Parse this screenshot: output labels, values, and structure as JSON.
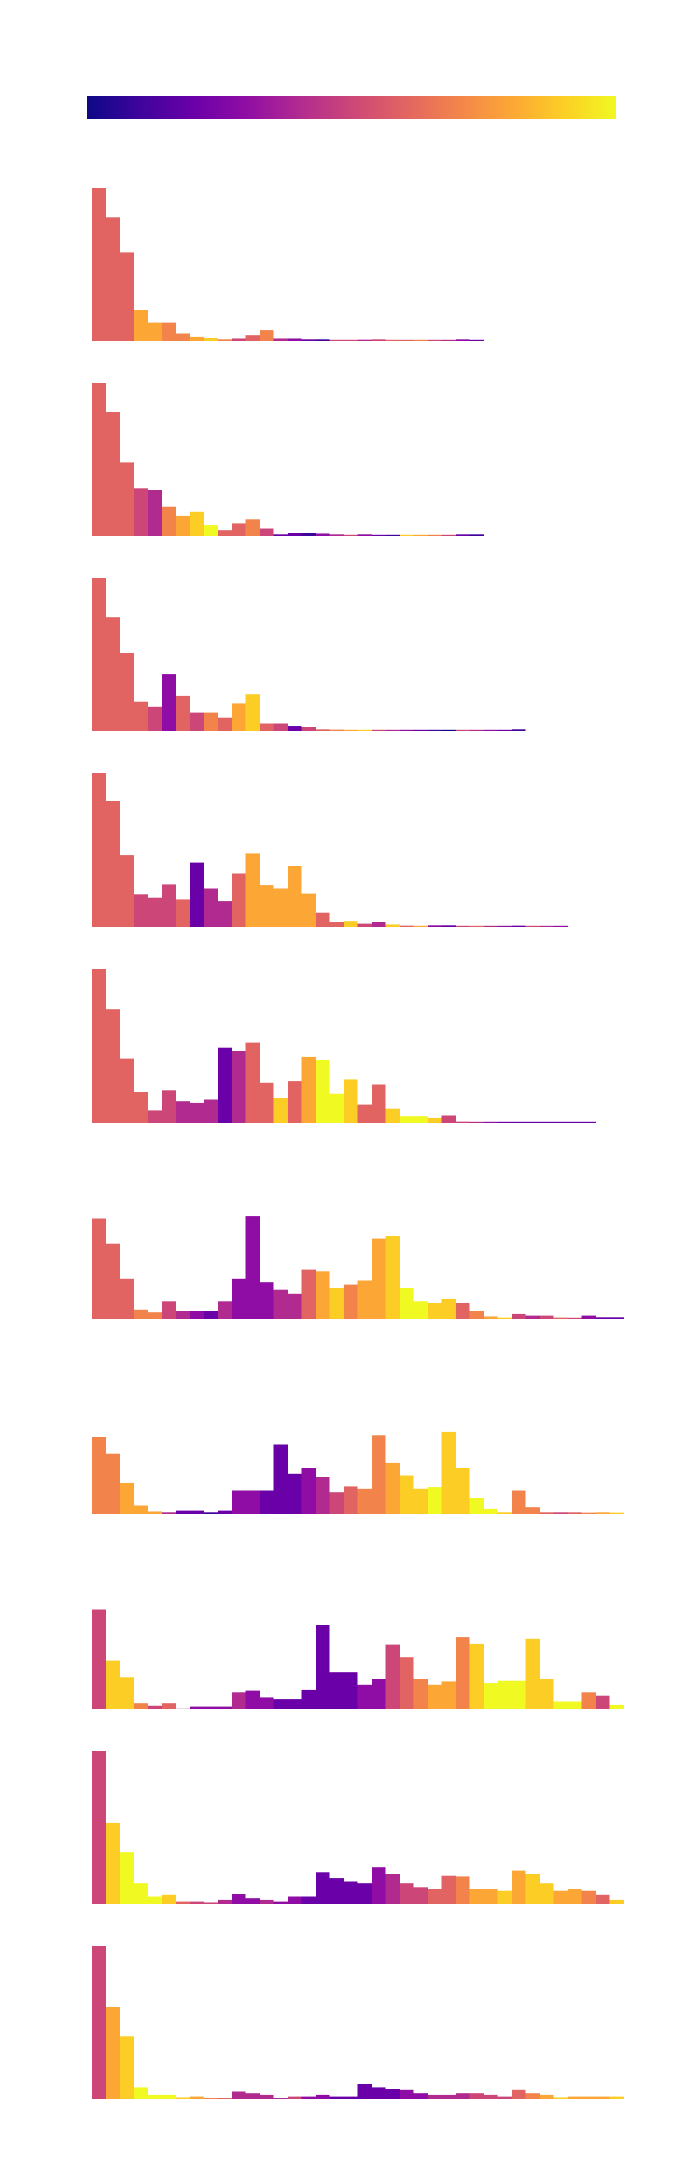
{
  "figure": {
    "colorbar": {
      "cmap": "plasma",
      "stops": [
        "#0d0887",
        "#3e049c",
        "#6a00a8",
        "#8f0da4",
        "#b12a90",
        "#cc4778",
        "#e16462",
        "#f2844b",
        "#fca636",
        "#fcce25",
        "#f0f921"
      ]
    }
  },
  "chart_data": [
    {
      "type": "bar",
      "title": "",
      "xlabel": "",
      "ylabel": "",
      "ylim": [
        0,
        1
      ],
      "grid": false,
      "legend": "none",
      "values": [
        1.0,
        0.81,
        0.58,
        0.2,
        0.12,
        0.12,
        0.05,
        0.03,
        0.02,
        0.01,
        0.015,
        0.04,
        0.07,
        0.015,
        0.015,
        0.01,
        0.01,
        0.004,
        0.003,
        0.008,
        0.01,
        0.007,
        0.005,
        0.003,
        0.003,
        0.004,
        0.01,
        0.007
      ],
      "colors": [
        "#e16462",
        "#e16462",
        "#e16462",
        "#fca636",
        "#fca636",
        "#f2844b",
        "#f2844b",
        "#fca636",
        "#fcce25",
        "#f2844b",
        "#cc4778",
        "#e16462",
        "#f2844b",
        "#b12a90",
        "#8f0da4",
        "#6a00a8",
        "#3e049c",
        "#cc4778",
        "#cc4778",
        "#b12a90",
        "#cc4778",
        "#e16462",
        "#e16462",
        "#f2844b",
        "#cc4778",
        "#b12a90",
        "#8f0da4",
        "#6a00a8"
      ]
    },
    {
      "type": "bar",
      "title": "",
      "xlabel": "",
      "ylabel": "",
      "ylim": [
        0,
        1
      ],
      "grid": false,
      "legend": "none",
      "values": [
        1.0,
        0.81,
        0.48,
        0.31,
        0.3,
        0.19,
        0.13,
        0.16,
        0.07,
        0.04,
        0.08,
        0.11,
        0.05,
        0.01,
        0.02,
        0.02,
        0.015,
        0.01,
        0.005,
        0.01,
        0.005,
        0.004,
        0.004,
        0.003,
        0.003,
        0.005,
        0.01,
        0.01
      ],
      "colors": [
        "#e16462",
        "#e16462",
        "#e16462",
        "#cc4778",
        "#b12a90",
        "#f2844b",
        "#fca636",
        "#fcce25",
        "#f0f921",
        "#e16462",
        "#e16462",
        "#f2844b",
        "#cc4778",
        "#6a00a8",
        "#6a00a8",
        "#3e049c",
        "#8f0da4",
        "#b12a90",
        "#cc4778",
        "#8f0da4",
        "#6a00a8",
        "#3e049c",
        "#fcce25",
        "#fca636",
        "#f2844b",
        "#cc4778",
        "#6a00a8",
        "#3e049c"
      ]
    },
    {
      "type": "bar",
      "title": "",
      "xlabel": "",
      "ylabel": "",
      "ylim": [
        0,
        1
      ],
      "grid": false,
      "legend": "none",
      "values": [
        1.0,
        0.74,
        0.51,
        0.19,
        0.16,
        0.37,
        0.23,
        0.12,
        0.12,
        0.09,
        0.18,
        0.24,
        0.05,
        0.05,
        0.035,
        0.025,
        0.01,
        0.008,
        0.005,
        0.005,
        0.005,
        0.003,
        0.003,
        0.003,
        0.003,
        0.003,
        0.003,
        0.003,
        0.003,
        0.003,
        0.01
      ],
      "colors": [
        "#e16462",
        "#e16462",
        "#e16462",
        "#e16462",
        "#cc4778",
        "#8f0da4",
        "#e16462",
        "#cc4778",
        "#f2844b",
        "#e16462",
        "#fca636",
        "#fcce25",
        "#e16462",
        "#cc4778",
        "#6a00a8",
        "#cc4778",
        "#e16462",
        "#f2844b",
        "#fca636",
        "#fcce25",
        "#cc4778",
        "#b12a90",
        "#8f0da4",
        "#6a00a8",
        "#3e049c",
        "#0d0887",
        "#cc4778",
        "#b12a90",
        "#8f0da4",
        "#6a00a8",
        "#3e049c"
      ]
    },
    {
      "type": "bar",
      "title": "",
      "xlabel": "",
      "ylabel": "",
      "ylim": [
        0,
        1
      ],
      "grid": false,
      "legend": "none",
      "values": [
        1.0,
        0.82,
        0.47,
        0.21,
        0.19,
        0.28,
        0.18,
        0.42,
        0.25,
        0.17,
        0.35,
        0.48,
        0.27,
        0.25,
        0.4,
        0.22,
        0.09,
        0.03,
        0.04,
        0.02,
        0.03,
        0.015,
        0.008,
        0.005,
        0.01,
        0.01,
        0.005,
        0.005,
        0.005,
        0.005,
        0.008,
        0.005,
        0.005,
        0.005
      ],
      "colors": [
        "#e16462",
        "#e16462",
        "#e16462",
        "#cc4778",
        "#cc4778",
        "#cc4778",
        "#e16462",
        "#6a00a8",
        "#b12a90",
        "#b12a90",
        "#e16462",
        "#fca636",
        "#fca636",
        "#fca636",
        "#fca636",
        "#fca636",
        "#e16462",
        "#e16462",
        "#fcce25",
        "#cc4778",
        "#b12a90",
        "#fcce25",
        "#e16462",
        "#fca636",
        "#8f0da4",
        "#6a00a8",
        "#cc4778",
        "#e16462",
        "#b12a90",
        "#8f0da4",
        "#6a00a8",
        "#cc4778",
        "#b12a90",
        "#8f0da4"
      ]
    },
    {
      "type": "bar",
      "title": "",
      "xlabel": "",
      "ylabel": "",
      "ylim": [
        0,
        1
      ],
      "grid": false,
      "legend": "none",
      "values": [
        1.0,
        0.74,
        0.42,
        0.2,
        0.08,
        0.21,
        0.14,
        0.13,
        0.15,
        0.49,
        0.47,
        0.52,
        0.26,
        0.16,
        0.27,
        0.43,
        0.41,
        0.19,
        0.28,
        0.12,
        0.25,
        0.09,
        0.04,
        0.04,
        0.03,
        0.05,
        0.008,
        0.005,
        0.005,
        0.005,
        0.005,
        0.005,
        0.005,
        0.005,
        0.005,
        0.005
      ],
      "colors": [
        "#e16462",
        "#e16462",
        "#e16462",
        "#e16462",
        "#cc4778",
        "#cc4778",
        "#b12a90",
        "#b12a90",
        "#b12a90",
        "#6a00a8",
        "#b12a90",
        "#e16462",
        "#e16462",
        "#fcce25",
        "#e16462",
        "#fca636",
        "#f0f921",
        "#f0f921",
        "#fcce25",
        "#e16462",
        "#e16462",
        "#fcce25",
        "#f0f921",
        "#f0f921",
        "#fcce25",
        "#cc4778",
        "#cc4778",
        "#b12a90",
        "#8f0da4",
        "#6a00a8",
        "#6a00a8",
        "#6a00a8",
        "#6a00a8",
        "#6a00a8",
        "#6a00a8",
        "#6a00a8"
      ]
    },
    {
      "type": "bar",
      "title": "",
      "xlabel": "",
      "ylabel": "",
      "ylim": [
        0,
        1
      ],
      "grid": false,
      "legend": "none",
      "values": [
        0.65,
        0.49,
        0.26,
        0.06,
        0.04,
        0.11,
        0.05,
        0.05,
        0.05,
        0.11,
        0.26,
        0.67,
        0.24,
        0.19,
        0.16,
        0.32,
        0.31,
        0.2,
        0.22,
        0.25,
        0.52,
        0.54,
        0.2,
        0.11,
        0.1,
        0.13,
        0.1,
        0.05,
        0.015,
        0.008,
        0.03,
        0.02,
        0.02,
        0.008,
        0.005,
        0.02,
        0.01,
        0.01
      ],
      "colors": [
        "#e16462",
        "#e16462",
        "#e16462",
        "#f2844b",
        "#f2844b",
        "#cc4778",
        "#b12a90",
        "#8f0da4",
        "#6a00a8",
        "#b12a90",
        "#8f0da4",
        "#8f0da4",
        "#8f0da4",
        "#b12a90",
        "#b12a90",
        "#e16462",
        "#fca636",
        "#fcce25",
        "#f2844b",
        "#fca636",
        "#fca636",
        "#fcce25",
        "#f0f921",
        "#f0f921",
        "#fcce25",
        "#fcce25",
        "#e16462",
        "#f2844b",
        "#fca636",
        "#fcce25",
        "#cc4778",
        "#b12a90",
        "#cc4778",
        "#e16462",
        "#cc4778",
        "#8f0da4",
        "#6a00a8",
        "#6a00a8"
      ]
    },
    {
      "type": "bar",
      "title": "",
      "xlabel": "",
      "ylabel": "",
      "ylim": [
        0,
        1
      ],
      "grid": false,
      "legend": "none",
      "values": [
        0.5,
        0.39,
        0.2,
        0.05,
        0.015,
        0.01,
        0.02,
        0.02,
        0.01,
        0.02,
        0.15,
        0.15,
        0.15,
        0.45,
        0.26,
        0.3,
        0.24,
        0.14,
        0.18,
        0.16,
        0.51,
        0.33,
        0.25,
        0.16,
        0.17,
        0.53,
        0.3,
        0.1,
        0.03,
        0.01,
        0.15,
        0.04,
        0.01,
        0.01,
        0.01,
        0.008,
        0.01,
        0.008
      ],
      "colors": [
        "#f2844b",
        "#f2844b",
        "#fca636",
        "#fca636",
        "#fca636",
        "#b12a90",
        "#6a00a8",
        "#6a00a8",
        "#3e049c",
        "#6a00a8",
        "#8f0da4",
        "#8f0da4",
        "#6a00a8",
        "#6a00a8",
        "#6a00a8",
        "#8f0da4",
        "#b12a90",
        "#cc4778",
        "#e16462",
        "#f2844b",
        "#f2844b",
        "#fca636",
        "#fcce25",
        "#fcce25",
        "#f0f921",
        "#fcce25",
        "#fcce25",
        "#f0f921",
        "#f0f921",
        "#fcce25",
        "#f2844b",
        "#f2844b",
        "#e16462",
        "#cc4778",
        "#e16462",
        "#f2844b",
        "#fca636",
        "#fcce25"
      ]
    },
    {
      "type": "bar",
      "title": "",
      "xlabel": "",
      "ylabel": "",
      "ylim": [
        0,
        1
      ],
      "grid": false,
      "legend": "none",
      "values": [
        0.65,
        0.32,
        0.21,
        0.04,
        0.025,
        0.04,
        0.005,
        0.02,
        0.02,
        0.02,
        0.11,
        0.12,
        0.08,
        0.07,
        0.07,
        0.13,
        0.55,
        0.24,
        0.24,
        0.16,
        0.2,
        0.42,
        0.34,
        0.2,
        0.16,
        0.18,
        0.47,
        0.43,
        0.17,
        0.19,
        0.19,
        0.46,
        0.2,
        0.05,
        0.05,
        0.11,
        0.09,
        0.03
      ],
      "colors": [
        "#cc4778",
        "#fcce25",
        "#fcce25",
        "#f2844b",
        "#cc4778",
        "#e16462",
        "#b12a90",
        "#8f0da4",
        "#8f0da4",
        "#8f0da4",
        "#b12a90",
        "#8f0da4",
        "#8f0da4",
        "#6a00a8",
        "#6a00a8",
        "#6a00a8",
        "#6a00a8",
        "#6a00a8",
        "#6a00a8",
        "#8f0da4",
        "#8f0da4",
        "#cc4778",
        "#e16462",
        "#f2844b",
        "#fca636",
        "#fca636",
        "#f2844b",
        "#fcce25",
        "#f0f921",
        "#f0f921",
        "#f0f921",
        "#fcce25",
        "#fcce25",
        "#f0f921",
        "#f0f921",
        "#f2844b",
        "#cc4778",
        "#f0f921"
      ]
    },
    {
      "type": "bar",
      "title": "",
      "xlabel": "",
      "ylabel": "",
      "ylim": [
        0,
        1
      ],
      "grid": false,
      "legend": "none",
      "values": [
        1.0,
        0.53,
        0.34,
        0.14,
        0.05,
        0.06,
        0.02,
        0.02,
        0.015,
        0.03,
        0.07,
        0.04,
        0.03,
        0.02,
        0.05,
        0.05,
        0.21,
        0.17,
        0.15,
        0.14,
        0.24,
        0.2,
        0.14,
        0.11,
        0.1,
        0.19,
        0.18,
        0.1,
        0.1,
        0.09,
        0.22,
        0.2,
        0.14,
        0.09,
        0.1,
        0.09,
        0.06,
        0.03
      ],
      "colors": [
        "#cc4778",
        "#fcce25",
        "#f0f921",
        "#f0f921",
        "#f0f921",
        "#fcce25",
        "#e16462",
        "#cc4778",
        "#cc4778",
        "#b12a90",
        "#8f0da4",
        "#8f0da4",
        "#b12a90",
        "#8f0da4",
        "#8f0da4",
        "#6a00a8",
        "#6a00a8",
        "#6a00a8",
        "#6a00a8",
        "#6a00a8",
        "#8f0da4",
        "#b12a90",
        "#cc4778",
        "#cc4778",
        "#e16462",
        "#e16462",
        "#f2844b",
        "#fca636",
        "#fca636",
        "#fcce25",
        "#fca636",
        "#fcce25",
        "#fcce25",
        "#fca636",
        "#fca636",
        "#f2844b",
        "#e16462",
        "#fcce25"
      ]
    },
    {
      "type": "bar",
      "title": "",
      "xlabel": "",
      "ylabel": "",
      "ylim": [
        0,
        1
      ],
      "grid": false,
      "legend": "none",
      "values": [
        1.0,
        0.6,
        0.41,
        0.08,
        0.03,
        0.03,
        0.015,
        0.02,
        0.01,
        0.01,
        0.05,
        0.04,
        0.03,
        0.01,
        0.02,
        0.02,
        0.03,
        0.02,
        0.02,
        0.1,
        0.08,
        0.07,
        0.06,
        0.04,
        0.03,
        0.03,
        0.04,
        0.04,
        0.03,
        0.02,
        0.06,
        0.04,
        0.03,
        0.015,
        0.02,
        0.02,
        0.02,
        0.02
      ],
      "colors": [
        "#cc4778",
        "#fca636",
        "#fcce25",
        "#f0f921",
        "#f0f921",
        "#f0f921",
        "#fcce25",
        "#fca636",
        "#f2844b",
        "#e16462",
        "#b12a90",
        "#b12a90",
        "#b12a90",
        "#b12a90",
        "#cc4778",
        "#8f0da4",
        "#8f0da4",
        "#6a00a8",
        "#6a00a8",
        "#6a00a8",
        "#6a00a8",
        "#6a00a8",
        "#8f0da4",
        "#8f0da4",
        "#b12a90",
        "#b12a90",
        "#b12a90",
        "#cc4778",
        "#cc4778",
        "#cc4778",
        "#e16462",
        "#f2844b",
        "#fca636",
        "#fcce25",
        "#fca636",
        "#fca636",
        "#fca636",
        "#fcce25"
      ]
    }
  ]
}
